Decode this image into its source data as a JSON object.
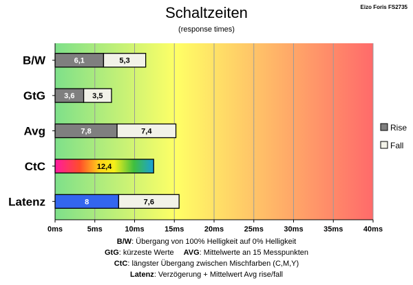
{
  "header": {
    "title": "Schaltzeiten",
    "subtitle": "(response times)",
    "monitor": "Eizo Foris FS2735"
  },
  "chart_data": {
    "type": "bar",
    "orientation": "horizontal",
    "stacked": true,
    "categories": [
      "B/W",
      "GtG",
      "Avg",
      "CtC",
      "Latenz"
    ],
    "series": [
      {
        "name": "Rise",
        "values": [
          6.1,
          3.6,
          7.8,
          12.4,
          8
        ],
        "labels": [
          "6,1",
          "3,6",
          "7,8",
          "12,4",
          "8"
        ]
      },
      {
        "name": "Fall",
        "values": [
          5.3,
          3.5,
          7.4,
          0,
          7.6
        ],
        "labels": [
          "5,3",
          "3,5",
          "7,4",
          "",
          "7,6"
        ]
      }
    ],
    "x_ticks": [
      "0ms",
      "5ms",
      "10ms",
      "15ms",
      "20ms",
      "25ms",
      "30ms",
      "35ms",
      "40ms"
    ],
    "xlim": [
      0,
      40
    ],
    "grid": true,
    "legend_position": "right",
    "colors": {
      "rise": "#7f7f7f",
      "fall": "#f2f2e8",
      "latenz_rise": "#3366ee",
      "background_gradient": [
        "#7ee08a",
        "#ffff66",
        "#ff6a6a"
      ]
    }
  },
  "notes": [
    {
      "key": "B/W",
      "text": ":  Übergang von 100% Helligkeit auf 0% Helligkeit"
    },
    {
      "key": "GtG",
      "text": ": kürzeste  Werte"
    },
    {
      "key": "AVG",
      "text": ": Mittelwerte  an 15 Messpunkten"
    },
    {
      "key": "CtC",
      "text": ": längster Übergang  zwischen Mischfarben (C,M,Y)"
    },
    {
      "key": "Latenz",
      "text": ": Verzögerung  + Mittelwert Avg rise/fall"
    }
  ]
}
